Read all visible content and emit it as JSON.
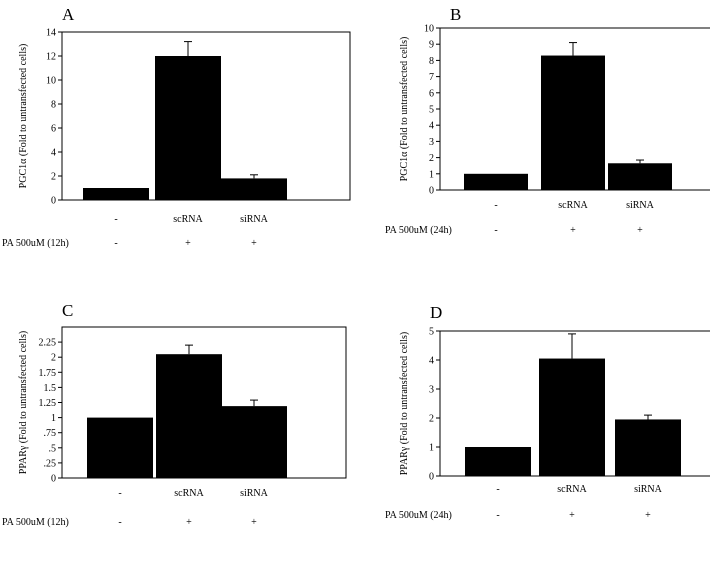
{
  "chart_data": [
    {
      "type": "bar",
      "panel": "A",
      "categories": [
        "-",
        "scRNA",
        "siRNA"
      ],
      "values": [
        1,
        12,
        1.8
      ],
      "errors": [
        0,
        1.2,
        0.3
      ],
      "ylabel": "PGC1α (Fold to untransfected cells)",
      "ylim": [
        0,
        14
      ],
      "yticks": [
        "0",
        "2",
        "4",
        "6",
        "8",
        "10",
        "12",
        "14"
      ],
      "yticks_values": [
        0,
        2,
        4,
        6,
        8,
        10,
        12,
        14
      ],
      "treatment_label": "PA 500uM (12h)",
      "treatment_values": [
        "-",
        "+",
        "+"
      ],
      "grid": false,
      "bar_color": "#000000"
    },
    {
      "type": "bar",
      "panel": "B",
      "categories": [
        "-",
        "scRNA",
        "siRNA"
      ],
      "values": [
        1,
        8.3,
        1.65
      ],
      "errors": [
        0,
        0.8,
        0.2
      ],
      "ylabel": "PGC1α (Fold to untransfected cells)",
      "ylim": [
        0,
        10
      ],
      "yticks": [
        "0",
        "1",
        "2",
        "3",
        "4",
        "5",
        "6",
        "7",
        "8",
        "9",
        "10"
      ],
      "yticks_values": [
        0,
        1,
        2,
        3,
        4,
        5,
        6,
        7,
        8,
        9,
        10
      ],
      "treatment_label": "PA 500uM (24h)",
      "treatment_values": [
        "-",
        "+",
        "+"
      ],
      "grid": false,
      "bar_color": "#000000"
    },
    {
      "type": "bar",
      "panel": "C",
      "categories": [
        "-",
        "scRNA",
        "siRNA"
      ],
      "values": [
        1,
        2.05,
        1.19
      ],
      "errors": [
        0,
        0.15,
        0.1
      ],
      "ylabel": "PPARγ (Fold to untransfected cells)",
      "ylim": [
        0,
        2.5
      ],
      "yticks": [
        "0",
        ".25",
        ".5",
        ".75",
        "1",
        "1.25",
        "1.5",
        "1.75",
        "2",
        "2.25"
      ],
      "yticks_values": [
        0,
        0.25,
        0.5,
        0.75,
        1,
        1.25,
        1.5,
        1.75,
        2,
        2.25
      ],
      "treatment_label": "PA 500uM (12h)",
      "treatment_values": [
        "-",
        "+",
        "+"
      ],
      "grid": false,
      "bar_color": "#000000"
    },
    {
      "type": "bar",
      "panel": "D",
      "categories": [
        "-",
        "scRNA",
        "siRNA"
      ],
      "values": [
        1,
        4.05,
        1.95
      ],
      "errors": [
        0,
        0.85,
        0.15
      ],
      "ylabel": "PPARγ (Fold to untransfected cells)",
      "ylim": [
        0,
        5
      ],
      "yticks": [
        "0",
        "1",
        "2",
        "3",
        "4",
        "5"
      ],
      "yticks_values": [
        0,
        1,
        2,
        3,
        4,
        5
      ],
      "treatment_label": "PA 500uM (24h)",
      "treatment_values": [
        "-",
        "+",
        "+"
      ],
      "grid": false,
      "bar_color": "#000000"
    }
  ]
}
